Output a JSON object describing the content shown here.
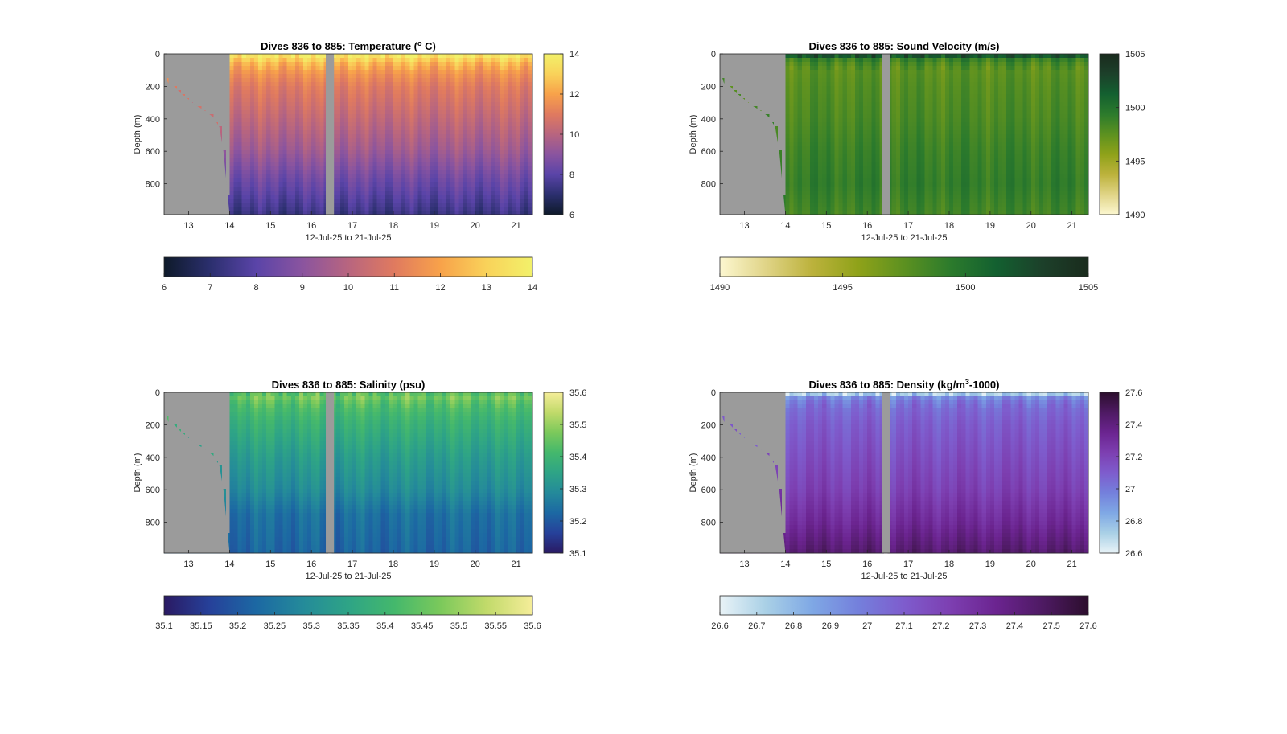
{
  "figure": {
    "background": "#ffffff"
  },
  "chart_data": [
    {
      "type": "heatmap",
      "title_main": "Dives 836 to 885: Temperature (",
      "title_sup": "o",
      "title_tail": " C)",
      "xlabel": "12-Jul-25 to 21-Jul-25",
      "ylabel": "Depth (m)",
      "xlim": [
        12.4,
        21.4
      ],
      "ylim": [
        0,
        990
      ],
      "x_ticks": [
        "13",
        "14",
        "15",
        "16",
        "17",
        "18",
        "19",
        "20",
        "21"
      ],
      "y_ticks": [
        "0",
        "200",
        "400",
        "600",
        "800"
      ],
      "colorbar_ticks": [
        "6",
        "8",
        "10",
        "12",
        "14"
      ],
      "colorbar_range": [
        6,
        14
      ],
      "horizontal_colorbar_ticks": [
        "6",
        "7",
        "8",
        "9",
        "10",
        "11",
        "12",
        "13",
        "14"
      ],
      "colormap": [
        "#0e1a2a",
        "#2b2f6e",
        "#5a44a8",
        "#8a549f",
        "#b8657f",
        "#e07a5f",
        "#f8a24a",
        "#f9d25a",
        "#f2f16a"
      ],
      "missing_color": "#9b9b9b",
      "gap_x": [
        16.35,
        16.55
      ],
      "bathymetry": [
        [
          12.4,
          0
        ],
        [
          12.45,
          140
        ],
        [
          12.5,
          180
        ],
        [
          12.65,
          200
        ],
        [
          12.8,
          240
        ],
        [
          13.0,
          280
        ],
        [
          13.2,
          320
        ],
        [
          13.4,
          350
        ],
        [
          13.6,
          390
        ],
        [
          13.75,
          450
        ],
        [
          13.85,
          600
        ],
        [
          14.0,
          990
        ]
      ],
      "profile": {
        "depth": [
          0,
          20,
          60,
          120,
          200,
          400,
          600,
          800,
          990
        ],
        "value": [
          14,
          13.4,
          12.4,
          11.6,
          11.0,
          10.2,
          9.4,
          8.3,
          7.3
        ]
      }
    },
    {
      "type": "heatmap",
      "title_main": "Dives 836 to 885: Sound Velocity (m/s)",
      "title_sup": "",
      "title_tail": "",
      "xlabel": "12-Jul-25 to 21-Jul-25",
      "ylabel": "Depth (m)",
      "xlim": [
        12.4,
        21.4
      ],
      "ylim": [
        0,
        990
      ],
      "x_ticks": [
        "13",
        "14",
        "15",
        "16",
        "17",
        "18",
        "19",
        "20",
        "21"
      ],
      "y_ticks": [
        "0",
        "200",
        "400",
        "600",
        "800"
      ],
      "colorbar_ticks": [
        "1490",
        "1495",
        "1500",
        "1505"
      ],
      "colorbar_range": [
        1490,
        1505
      ],
      "horizontal_colorbar_ticks": [
        "1490",
        "1495",
        "1500",
        "1505"
      ],
      "colormap": [
        "#fcf7d0",
        "#e0d487",
        "#bcb23c",
        "#8fa219",
        "#5c9120",
        "#2c7b2c",
        "#136030",
        "#1c402a",
        "#1a2b1d"
      ],
      "missing_color": "#9b9b9b",
      "gap_x": [
        16.35,
        16.55
      ],
      "bathymetry": [
        [
          12.4,
          0
        ],
        [
          12.45,
          140
        ],
        [
          12.5,
          180
        ],
        [
          12.65,
          200
        ],
        [
          12.8,
          240
        ],
        [
          13.0,
          280
        ],
        [
          13.2,
          320
        ],
        [
          13.4,
          350
        ],
        [
          13.6,
          390
        ],
        [
          13.75,
          450
        ],
        [
          13.85,
          600
        ],
        [
          14.0,
          990
        ]
      ],
      "profile": {
        "depth": [
          0,
          15,
          40,
          100,
          200,
          400,
          600,
          800,
          990
        ],
        "value": [
          1503,
          1501.5,
          1498.5,
          1497.5,
          1497.8,
          1498.2,
          1498.8,
          1499.2,
          1498.5
        ]
      }
    },
    {
      "type": "heatmap",
      "title_main": "Dives 836 to 885: Salinity (psu)",
      "title_sup": "",
      "title_tail": "",
      "xlabel": "12-Jul-25 to 21-Jul-25",
      "ylabel": "Depth (m)",
      "xlim": [
        12.4,
        21.4
      ],
      "ylim": [
        0,
        990
      ],
      "x_ticks": [
        "13",
        "14",
        "15",
        "16",
        "17",
        "18",
        "19",
        "20",
        "21"
      ],
      "y_ticks": [
        "0",
        "200",
        "400",
        "600",
        "800"
      ],
      "colorbar_ticks": [
        "35.1",
        "35.2",
        "35.3",
        "35.4",
        "35.5",
        "35.6"
      ],
      "colorbar_range": [
        35.1,
        35.6
      ],
      "horizontal_colorbar_ticks": [
        "35.1",
        "35.15",
        "35.2",
        "35.25",
        "35.3",
        "35.35",
        "35.4",
        "35.45",
        "35.5",
        "35.55",
        "35.6"
      ],
      "colormap": [
        "#2a1a63",
        "#26419a",
        "#1c68a3",
        "#248a9a",
        "#2ea486",
        "#44b86c",
        "#7bc95b",
        "#c1da6a",
        "#f5ed99"
      ],
      "missing_color": "#9b9b9b",
      "gap_x": [
        16.35,
        16.55
      ],
      "bathymetry": [
        [
          12.4,
          0
        ],
        [
          12.45,
          140
        ],
        [
          12.5,
          180
        ],
        [
          12.65,
          200
        ],
        [
          12.8,
          240
        ],
        [
          13.0,
          280
        ],
        [
          13.2,
          320
        ],
        [
          13.4,
          350
        ],
        [
          13.6,
          390
        ],
        [
          13.75,
          450
        ],
        [
          13.85,
          600
        ],
        [
          14.0,
          990
        ]
      ],
      "profile": {
        "depth": [
          0,
          30,
          80,
          150,
          250,
          400,
          600,
          750,
          990
        ],
        "value": [
          35.42,
          35.47,
          35.43,
          35.4,
          35.37,
          35.33,
          35.29,
          35.24,
          35.22
        ]
      }
    },
    {
      "type": "heatmap",
      "title_main": "Dives 836 to 885: Density (kg/m",
      "title_sup": "3",
      "title_tail": "-1000)",
      "xlabel": "12-Jul-25 to 21-Jul-25",
      "ylabel": "Depth (m)",
      "xlim": [
        12.4,
        21.4
      ],
      "ylim": [
        0,
        990
      ],
      "x_ticks": [
        "13",
        "14",
        "15",
        "16",
        "17",
        "18",
        "19",
        "20",
        "21"
      ],
      "y_ticks": [
        "0",
        "200",
        "400",
        "600",
        "800"
      ],
      "colorbar_ticks": [
        "26.6",
        "26.8",
        "27",
        "27.2",
        "27.4",
        "27.6"
      ],
      "colorbar_range": [
        26.6,
        27.6
      ],
      "horizontal_colorbar_ticks": [
        "26.6",
        "26.7",
        "26.8",
        "26.9",
        "27",
        "27.1",
        "27.2",
        "27.3",
        "27.4",
        "27.5",
        "27.6"
      ],
      "colormap": [
        "#e9f3f7",
        "#a9d0e6",
        "#7fa8e5",
        "#7480dc",
        "#7e5ccd",
        "#7d3fb1",
        "#6b2490",
        "#4e1a63",
        "#2c0e2d"
      ],
      "missing_color": "#9b9b9b",
      "gap_x": [
        16.35,
        16.55
      ],
      "bathymetry": [
        [
          12.4,
          0
        ],
        [
          12.45,
          140
        ],
        [
          12.5,
          180
        ],
        [
          12.65,
          200
        ],
        [
          12.8,
          240
        ],
        [
          13.0,
          280
        ],
        [
          13.2,
          320
        ],
        [
          13.4,
          350
        ],
        [
          13.6,
          390
        ],
        [
          13.75,
          450
        ],
        [
          13.85,
          600
        ],
        [
          14.0,
          990
        ]
      ],
      "profile": {
        "depth": [
          0,
          15,
          40,
          100,
          200,
          400,
          600,
          800,
          990
        ],
        "value": [
          26.62,
          26.75,
          26.98,
          27.05,
          27.1,
          27.16,
          27.22,
          27.32,
          27.45
        ]
      }
    }
  ]
}
